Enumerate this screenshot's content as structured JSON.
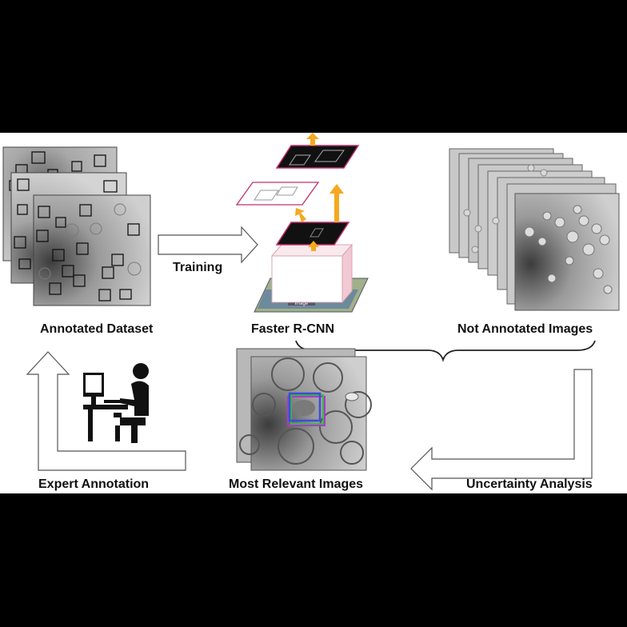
{
  "labels": {
    "annotated_dataset": "Annotated Dataset",
    "training": "Training",
    "faster_rcnn": "Faster R-CNN",
    "not_annotated": "Not Annotated Images",
    "expert_annotation": "Expert Annotation",
    "most_relevant": "Most Relevant Images",
    "uncertainty": "Uncertainty Analysis",
    "image_tag": "image"
  },
  "colors": {
    "background": "#000000",
    "panel": "#ffffff",
    "arrow_orange": "#f6a821",
    "feature_map_border": "#c0306a",
    "box_blue": "#3a4fd8",
    "box_purple": "#a83cc8",
    "box_green": "#3fb548"
  },
  "icons": [
    "person-at-computer-icon"
  ]
}
